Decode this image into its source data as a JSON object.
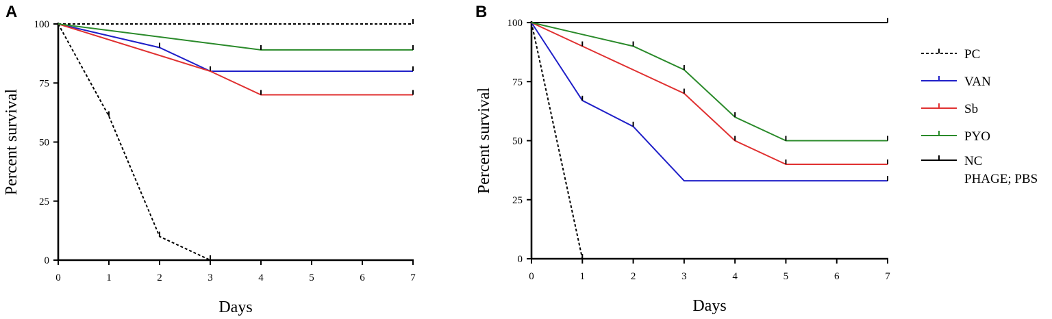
{
  "chart_data": [
    {
      "panel": "A",
      "type": "line",
      "title": "",
      "xlabel": "Days",
      "ylabel": "Percent survival",
      "xlim": [
        0,
        7
      ],
      "ylim": [
        0,
        100
      ],
      "xticks": [
        "0",
        "1",
        "2",
        "3",
        "4",
        "5",
        "6",
        "7"
      ],
      "yticks": [
        "0",
        "25",
        "50",
        "75",
        "100"
      ],
      "series": [
        {
          "name": "NC",
          "color": "#000000",
          "dash": "4,3",
          "x": [
            0,
            7
          ],
          "y": [
            100,
            100
          ],
          "censor_x": [
            7
          ]
        },
        {
          "name": "PC",
          "color": "#000000",
          "dash": "4,3",
          "x": [
            0,
            1,
            2,
            3
          ],
          "y": [
            100,
            61,
            10,
            0
          ],
          "censor_x": [
            1,
            2,
            3
          ]
        },
        {
          "name": "VAN",
          "color": "#1f1fc8",
          "dash": "",
          "x": [
            0,
            2,
            3,
            4,
            7
          ],
          "y": [
            100,
            90,
            80,
            80,
            80
          ],
          "censor_x": [
            2,
            3,
            7
          ]
        },
        {
          "name": "Sb",
          "color": "#e03030",
          "dash": "",
          "x": [
            0,
            3,
            4,
            7
          ],
          "y": [
            100,
            80,
            70,
            70
          ],
          "censor_x": [
            4,
            7
          ]
        },
        {
          "name": "PYO",
          "color": "#2a8a2a",
          "dash": "",
          "x": [
            0,
            4,
            7
          ],
          "y": [
            100,
            89,
            89
          ],
          "censor_x": [
            4,
            7
          ]
        }
      ]
    },
    {
      "panel": "B",
      "type": "line",
      "title": "",
      "xlabel": "Days",
      "ylabel": "Percent survival",
      "xlim": [
        0,
        7
      ],
      "ylim": [
        0,
        100
      ],
      "xticks": [
        "0",
        "1",
        "2",
        "3",
        "4",
        "5",
        "6",
        "7"
      ],
      "yticks": [
        "0",
        "25",
        "50",
        "75",
        "100"
      ],
      "series": [
        {
          "name": "NC",
          "color": "#000000",
          "dash": "",
          "x": [
            0,
            7
          ],
          "y": [
            100,
            100
          ],
          "censor_x": [
            7
          ]
        },
        {
          "name": "PC",
          "color": "#000000",
          "dash": "4,3",
          "x": [
            0,
            1
          ],
          "y": [
            100,
            0
          ],
          "censor_x": [
            1
          ]
        },
        {
          "name": "VAN",
          "color": "#1f1fc8",
          "dash": "",
          "x": [
            0,
            1,
            2,
            3,
            7
          ],
          "y": [
            100,
            67,
            56,
            33,
            33
          ],
          "censor_x": [
            1,
            2,
            7
          ]
        },
        {
          "name": "Sb",
          "color": "#e03030",
          "dash": "",
          "x": [
            0,
            1,
            2,
            3,
            4,
            5,
            7
          ],
          "y": [
            100,
            90,
            80,
            70,
            50,
            40,
            40
          ],
          "censor_x": [
            1,
            3,
            4,
            5,
            7
          ]
        },
        {
          "name": "PYO",
          "color": "#2a8a2a",
          "dash": "",
          "x": [
            0,
            1,
            2,
            3,
            4,
            5,
            7
          ],
          "y": [
            100,
            95,
            90,
            80,
            60,
            50,
            50
          ],
          "censor_x": [
            2,
            3,
            4,
            5,
            7
          ]
        }
      ]
    }
  ],
  "legend": [
    {
      "label": "PC",
      "color": "#000000",
      "dash": "4,3"
    },
    {
      "label": "VAN",
      "color": "#1f1fc8",
      "dash": ""
    },
    {
      "label": "Sb",
      "color": "#e03030",
      "dash": ""
    },
    {
      "label": "PYO",
      "color": "#2a8a2a",
      "dash": ""
    },
    {
      "label": "NC",
      "label2": "PHAGE; PBS",
      "color": "#000000",
      "dash": ""
    }
  ]
}
